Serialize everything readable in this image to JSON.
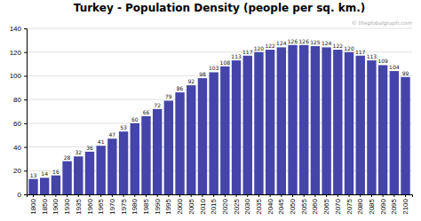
{
  "chart_data": {
    "type": "bar",
    "title": "Turkey - Population Density (people per sq. km.)",
    "annotations": [
      "© theglobalgraph.com"
    ],
    "categories": [
      "1800",
      "1850",
      "1900",
      "1930",
      "1935",
      "1960",
      "1965",
      "1970",
      "1975",
      "1980",
      "1985",
      "1990",
      "1995",
      "2000",
      "2005",
      "2010",
      "2015",
      "2020",
      "2025",
      "2030",
      "2035",
      "2040",
      "2045",
      "2050",
      "2055",
      "2060",
      "2065",
      "2070",
      "2075",
      "2080",
      "2085",
      "2090",
      "2095",
      "2100"
    ],
    "values": [
      13,
      14,
      16,
      28,
      32,
      36,
      41,
      47,
      53,
      60,
      66,
      72,
      79,
      86,
      92,
      98,
      103,
      108,
      113,
      117,
      120,
      122,
      124,
      126,
      126,
      125,
      124,
      122,
      120,
      117,
      113,
      109,
      104,
      99
    ],
    "color": "#4444aa",
    "ylim": [
      0,
      140
    ],
    "yticks": [
      0,
      20,
      40,
      60,
      80,
      100,
      120,
      140
    ],
    "grid": true,
    "data_labels": true
  }
}
